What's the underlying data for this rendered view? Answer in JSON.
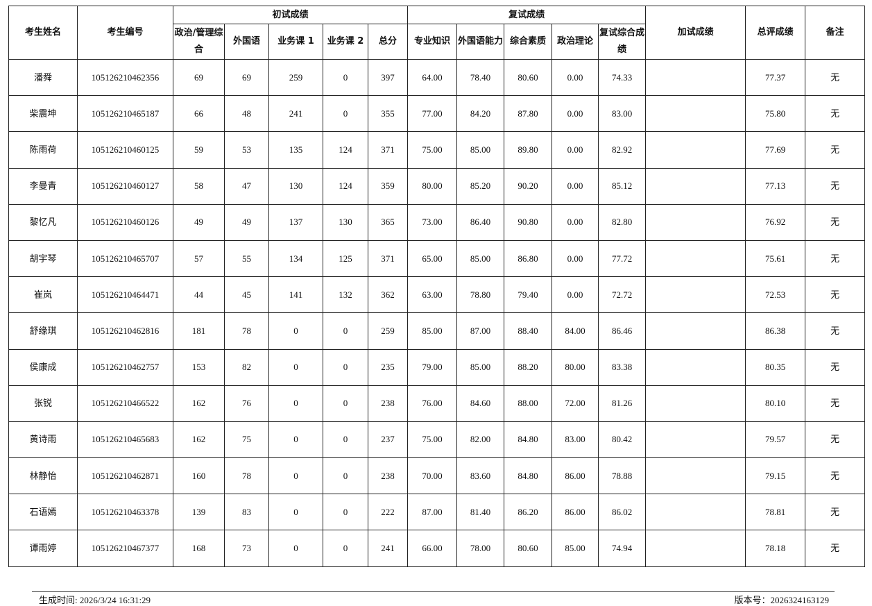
{
  "headers": {
    "name": "考生姓名",
    "id": "考生编号",
    "initial_group": "初试成绩",
    "initial_cols": [
      "政治/管理综合",
      "外国语",
      "业务课 1",
      "业务课 2",
      "总分"
    ],
    "retest_group": "复试成绩",
    "retest_cols": [
      "专业知识",
      "外国语能力",
      "综合素质",
      "政治理论",
      "复试综合成绩"
    ],
    "extra": "加试成绩",
    "final": "总评成绩",
    "remark": "备注"
  },
  "rows": [
    [
      "潘舜",
      "105126210462356",
      "69",
      "69",
      "259",
      "0",
      "397",
      "64.00",
      "78.40",
      "80.60",
      "0.00",
      "74.33",
      "",
      "77.37",
      "无"
    ],
    [
      "柴震坤",
      "105126210465187",
      "66",
      "48",
      "241",
      "0",
      "355",
      "77.00",
      "84.20",
      "87.80",
      "0.00",
      "83.00",
      "",
      "75.80",
      "无"
    ],
    [
      "陈雨荷",
      "105126210460125",
      "59",
      "53",
      "135",
      "124",
      "371",
      "75.00",
      "85.00",
      "89.80",
      "0.00",
      "82.92",
      "",
      "77.69",
      "无"
    ],
    [
      "李曼青",
      "105126210460127",
      "58",
      "47",
      "130",
      "124",
      "359",
      "80.00",
      "85.20",
      "90.20",
      "0.00",
      "85.12",
      "",
      "77.13",
      "无"
    ],
    [
      "黎忆凡",
      "105126210460126",
      "49",
      "49",
      "137",
      "130",
      "365",
      "73.00",
      "86.40",
      "90.80",
      "0.00",
      "82.80",
      "",
      "76.92",
      "无"
    ],
    [
      "胡宇琴",
      "105126210465707",
      "57",
      "55",
      "134",
      "125",
      "371",
      "65.00",
      "85.00",
      "86.80",
      "0.00",
      "77.72",
      "",
      "75.61",
      "无"
    ],
    [
      "崔岚",
      "105126210464471",
      "44",
      "45",
      "141",
      "132",
      "362",
      "63.00",
      "78.80",
      "79.40",
      "0.00",
      "72.72",
      "",
      "72.53",
      "无"
    ],
    [
      "舒缘琪",
      "105126210462816",
      "181",
      "78",
      "0",
      "0",
      "259",
      "85.00",
      "87.00",
      "88.40",
      "84.00",
      "86.46",
      "",
      "86.38",
      "无"
    ],
    [
      "侯康成",
      "105126210462757",
      "153",
      "82",
      "0",
      "0",
      "235",
      "79.00",
      "85.00",
      "88.20",
      "80.00",
      "83.38",
      "",
      "80.35",
      "无"
    ],
    [
      "张锐",
      "105126210466522",
      "162",
      "76",
      "0",
      "0",
      "238",
      "76.00",
      "84.60",
      "88.00",
      "72.00",
      "81.26",
      "",
      "80.10",
      "无"
    ],
    [
      "黄诗雨",
      "105126210465683",
      "162",
      "75",
      "0",
      "0",
      "237",
      "75.00",
      "82.00",
      "84.80",
      "83.00",
      "80.42",
      "",
      "79.57",
      "无"
    ],
    [
      "林静怡",
      "105126210462871",
      "160",
      "78",
      "0",
      "0",
      "238",
      "70.00",
      "83.60",
      "84.80",
      "86.00",
      "78.88",
      "",
      "79.15",
      "无"
    ],
    [
      "石语嫣",
      "105126210463378",
      "139",
      "83",
      "0",
      "0",
      "222",
      "87.00",
      "81.40",
      "86.20",
      "86.00",
      "86.02",
      "",
      "78.81",
      "无"
    ],
    [
      "谭雨婷",
      "105126210467377",
      "168",
      "73",
      "0",
      "0",
      "241",
      "66.00",
      "78.00",
      "80.60",
      "85.00",
      "74.94",
      "",
      "78.18",
      "无"
    ]
  ],
  "footer": {
    "generated": "生成时间: 2026/3/24 16:31:29",
    "version": "版本号：2026324163129"
  }
}
